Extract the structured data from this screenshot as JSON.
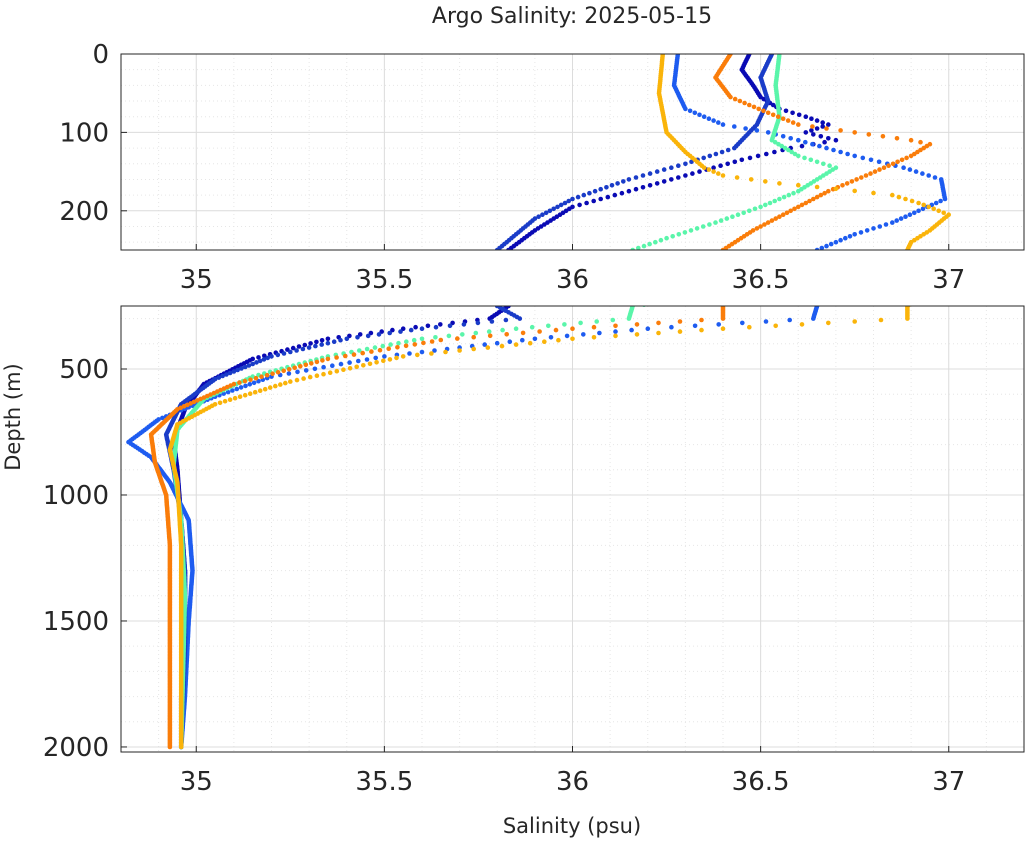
{
  "chart_data": {
    "type": "scatter",
    "title": "Argo Salinity: 2025-05-15",
    "xlabel": "Salinity (psu)",
    "ylabel": "Depth (m)",
    "grid": true,
    "panels": [
      {
        "name": "upper",
        "xlim": [
          34.8,
          37.2
        ],
        "ylim": [
          0,
          250
        ],
        "y_reversed": true,
        "xticks": [
          35,
          35.5,
          36,
          36.5,
          37
        ],
        "xtick_labels": [
          "35",
          "35.5",
          "36",
          "36.5",
          "37"
        ],
        "yticks": [
          0,
          100,
          200
        ],
        "ytick_labels": [
          "0",
          "100",
          "200"
        ]
      },
      {
        "name": "lower",
        "xlim": [
          34.8,
          37.2
        ],
        "ylim": [
          250,
          2020
        ],
        "y_reversed": true,
        "xticks": [
          35,
          35.5,
          36,
          36.5,
          37
        ],
        "xtick_labels": [
          "35",
          "35.5",
          "36",
          "36.5",
          "37"
        ],
        "yticks": [
          500,
          1000,
          1500,
          2000
        ],
        "ytick_labels": [
          "500",
          "1000",
          "1500",
          "2000"
        ]
      }
    ],
    "series": [
      {
        "color": "#0a0ab4",
        "points": [
          [
            36.47,
            0
          ],
          [
            36.45,
            20
          ],
          [
            36.48,
            40
          ],
          [
            36.5,
            55
          ],
          [
            36.55,
            70
          ],
          [
            36.62,
            80
          ],
          [
            36.68,
            90
          ],
          [
            36.62,
            100
          ],
          [
            36.7,
            110
          ],
          [
            36.58,
            120
          ],
          [
            36.45,
            135
          ],
          [
            36.3,
            155
          ],
          [
            36.15,
            175
          ],
          [
            36.0,
            195
          ],
          [
            35.95,
            210
          ],
          [
            35.9,
            225
          ],
          [
            35.83,
            250
          ],
          [
            35.78,
            300
          ],
          [
            35.55,
            340
          ],
          [
            35.35,
            380
          ],
          [
            35.15,
            460
          ],
          [
            35.02,
            560
          ],
          [
            34.97,
            660
          ],
          [
            34.94,
            780
          ],
          [
            34.95,
            900
          ],
          [
            34.96,
            1100
          ],
          [
            34.97,
            1300
          ],
          [
            34.97,
            1500
          ],
          [
            34.96,
            1800
          ],
          [
            34.96,
            2000
          ]
        ]
      },
      {
        "color": "#1e5cf0",
        "points": [
          [
            36.28,
            0
          ],
          [
            36.27,
            40
          ],
          [
            36.3,
            70
          ],
          [
            36.4,
            90
          ],
          [
            36.52,
            100
          ],
          [
            36.6,
            110
          ],
          [
            36.75,
            130
          ],
          [
            36.88,
            145
          ],
          [
            36.98,
            160
          ],
          [
            36.99,
            185
          ],
          [
            36.85,
            215
          ],
          [
            36.75,
            230
          ],
          [
            36.65,
            250
          ],
          [
            36.64,
            300
          ],
          [
            36.2,
            340
          ],
          [
            35.9,
            380
          ],
          [
            35.5,
            450
          ],
          [
            35.2,
            530
          ],
          [
            35.05,
            610
          ],
          [
            34.9,
            700
          ],
          [
            34.82,
            790
          ],
          [
            34.88,
            850
          ],
          [
            34.93,
            950
          ],
          [
            34.98,
            1100
          ],
          [
            34.99,
            1300
          ],
          [
            34.98,
            1500
          ],
          [
            34.97,
            1800
          ],
          [
            34.96,
            2000
          ]
        ]
      },
      {
        "color": "#1a3cc8",
        "points": [
          [
            36.53,
            0
          ],
          [
            36.5,
            30
          ],
          [
            36.52,
            60
          ],
          [
            36.49,
            90
          ],
          [
            36.43,
            120
          ],
          [
            36.3,
            140
          ],
          [
            36.15,
            160
          ],
          [
            36.0,
            185
          ],
          [
            35.9,
            210
          ],
          [
            35.85,
            230
          ],
          [
            35.8,
            250
          ],
          [
            35.86,
            300
          ],
          [
            35.6,
            340
          ],
          [
            35.4,
            380
          ],
          [
            35.2,
            450
          ],
          [
            35.05,
            540
          ],
          [
            34.96,
            640
          ],
          [
            34.92,
            760
          ],
          [
            34.94,
            900
          ],
          [
            34.96,
            1100
          ],
          [
            34.97,
            1300
          ],
          [
            34.97,
            1600
          ],
          [
            34.96,
            2000
          ]
        ]
      },
      {
        "color": "#5af5aa",
        "points": [
          [
            36.55,
            0
          ],
          [
            36.54,
            40
          ],
          [
            36.55,
            80
          ],
          [
            36.53,
            110
          ],
          [
            36.6,
            130
          ],
          [
            36.7,
            145
          ],
          [
            36.65,
            160
          ],
          [
            36.6,
            175
          ],
          [
            36.5,
            195
          ],
          [
            36.38,
            215
          ],
          [
            36.25,
            235
          ],
          [
            36.16,
            250
          ],
          [
            36.15,
            300
          ],
          [
            35.85,
            340
          ],
          [
            35.6,
            380
          ],
          [
            35.35,
            450
          ],
          [
            35.15,
            530
          ],
          [
            35.02,
            620
          ],
          [
            34.95,
            740
          ],
          [
            34.94,
            880
          ],
          [
            34.96,
            1100
          ],
          [
            34.97,
            1400
          ],
          [
            34.96,
            2000
          ]
        ]
      },
      {
        "color": "#fa7d0a",
        "points": [
          [
            36.42,
            0
          ],
          [
            36.38,
            30
          ],
          [
            36.42,
            55
          ],
          [
            36.52,
            75
          ],
          [
            36.6,
            90
          ],
          [
            36.75,
            100
          ],
          [
            36.9,
            110
          ],
          [
            36.95,
            115
          ],
          [
            36.9,
            130
          ],
          [
            36.78,
            155
          ],
          [
            36.68,
            175
          ],
          [
            36.58,
            200
          ],
          [
            36.48,
            225
          ],
          [
            36.4,
            250
          ],
          [
            36.4,
            300
          ],
          [
            36.0,
            340
          ],
          [
            35.65,
            385
          ],
          [
            35.35,
            460
          ],
          [
            35.1,
            560
          ],
          [
            34.95,
            660
          ],
          [
            34.88,
            760
          ],
          [
            34.89,
            870
          ],
          [
            34.92,
            1000
          ],
          [
            34.93,
            1200
          ],
          [
            34.93,
            1500
          ],
          [
            34.93,
            2000
          ]
        ]
      },
      {
        "color": "#fab40a",
        "points": [
          [
            36.24,
            0
          ],
          [
            36.23,
            50
          ],
          [
            36.25,
            100
          ],
          [
            36.3,
            125
          ],
          [
            36.35,
            145
          ],
          [
            36.4,
            155
          ],
          [
            36.55,
            165
          ],
          [
            36.7,
            172
          ],
          [
            36.85,
            180
          ],
          [
            36.92,
            190
          ],
          [
            37.0,
            205
          ],
          [
            36.95,
            225
          ],
          [
            36.9,
            240
          ],
          [
            36.89,
            250
          ],
          [
            36.89,
            300
          ],
          [
            36.4,
            340
          ],
          [
            36.0,
            380
          ],
          [
            35.55,
            450
          ],
          [
            35.25,
            550
          ],
          [
            35.05,
            640
          ],
          [
            34.95,
            720
          ],
          [
            34.93,
            820
          ],
          [
            34.95,
            950
          ],
          [
            34.96,
            1200
          ],
          [
            34.96,
            1500
          ],
          [
            34.96,
            2000
          ]
        ]
      }
    ]
  }
}
